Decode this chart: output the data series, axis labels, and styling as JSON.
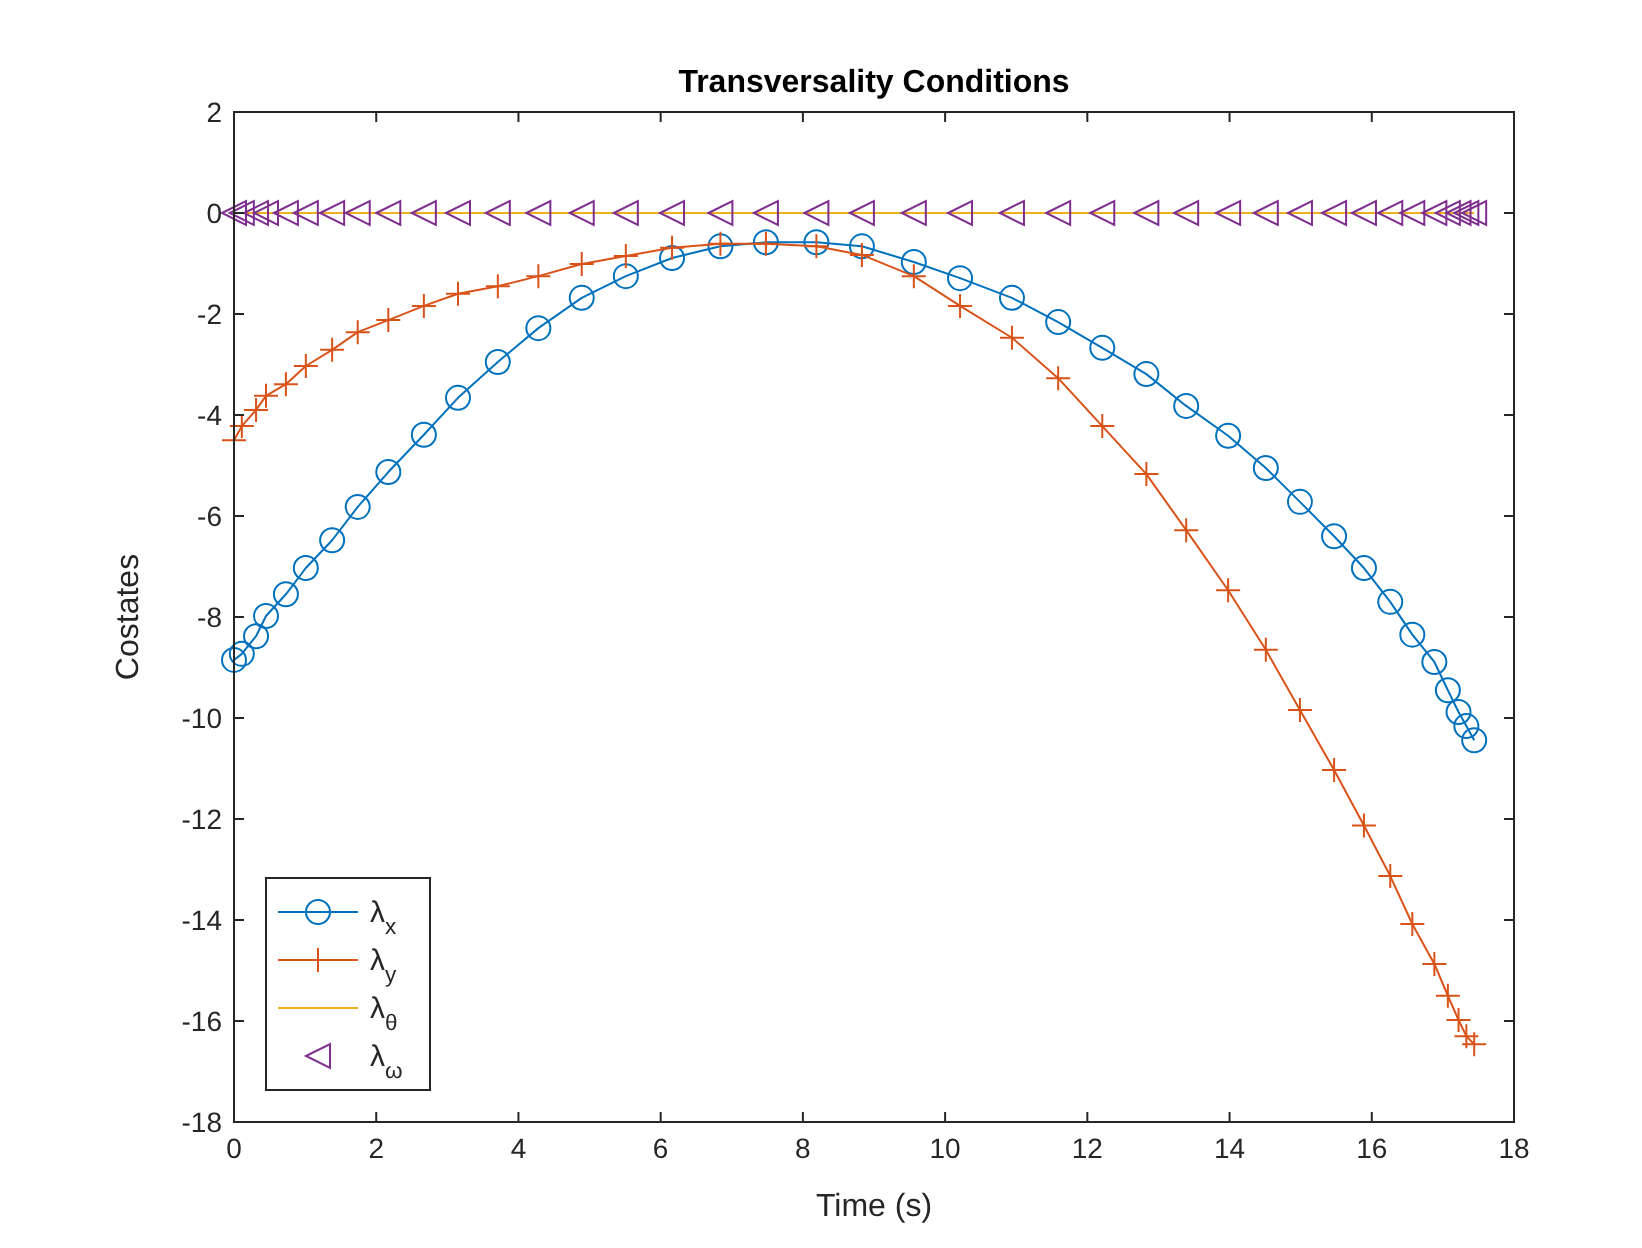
{
  "chart_data": {
    "type": "line",
    "title": "Transversality Conditions",
    "xlabel": "Time (s)",
    "ylabel": "Costates",
    "x": [
      0,
      0.11,
      0.31,
      0.45,
      0.73,
      1.01,
      1.38,
      1.74,
      2.17,
      2.67,
      3.15,
      3.71,
      4.28,
      4.89,
      5.51,
      6.16,
      6.84,
      7.48,
      8.19,
      8.83,
      9.56,
      10.21,
      10.94,
      11.59,
      12.21,
      12.83,
      13.39,
      13.98,
      14.51,
      14.99,
      15.47,
      15.89,
      16.26,
      16.57,
      16.88,
      17.07,
      17.22,
      17.33,
      17.44
    ],
    "series": [
      {
        "name": "λ$_{x}$",
        "color": "#0072bd",
        "marker": "circle",
        "line_style": "solid",
        "values": [
          -8.85,
          -8.73,
          -8.38,
          -7.98,
          -7.55,
          -7.03,
          -6.48,
          -5.82,
          -5.13,
          -4.39,
          -3.66,
          -2.95,
          -2.28,
          -1.68,
          -1.25,
          -0.89,
          -0.66,
          -0.58,
          -0.58,
          -0.66,
          -0.97,
          -1.29,
          -1.68,
          -2.16,
          -2.67,
          -3.19,
          -3.82,
          -4.41,
          -5.05,
          -5.72,
          -6.4,
          -7.03,
          -7.7,
          -8.35,
          -8.89,
          -9.45,
          -9.88,
          -10.16,
          -10.44
        ]
      },
      {
        "name": "λ$_{y}$",
        "color": "#d95319",
        "marker": "cross",
        "line_style": "solid",
        "values": [
          -4.5,
          -4.22,
          -3.9,
          -3.62,
          -3.39,
          -3.03,
          -2.71,
          -2.36,
          -2.12,
          -1.84,
          -1.6,
          -1.45,
          -1.25,
          -1.01,
          -0.85,
          -0.69,
          -0.61,
          -0.61,
          -0.66,
          -0.83,
          -1.25,
          -1.84,
          -2.47,
          -3.27,
          -4.22,
          -5.17,
          -6.28,
          -7.47,
          -8.65,
          -9.84,
          -11.03,
          -12.13,
          -13.13,
          -14.08,
          -14.87,
          -15.5,
          -15.98,
          -16.3,
          -16.46
        ]
      },
      {
        "name": "λ$_{θ}$",
        "color": "#edb120",
        "marker": "none",
        "line_style": "solid",
        "values": [
          0,
          0,
          0,
          0,
          0,
          0,
          0,
          0,
          0,
          0,
          0,
          0,
          0,
          0,
          0,
          0,
          0,
          0,
          0,
          0,
          0,
          0,
          0,
          0,
          0,
          0,
          0,
          0,
          0,
          0,
          0,
          0,
          0,
          0,
          0,
          0,
          0,
          0,
          0
        ]
      },
      {
        "name": "λ$_{ω}$",
        "type": "scatter",
        "color": "#7e2f8e",
        "marker": "triangle",
        "values": [
          0,
          0,
          0,
          0,
          0,
          0,
          0,
          0,
          0,
          0,
          0,
          0,
          0,
          0,
          0,
          0,
          0,
          0,
          0,
          0,
          0,
          0,
          0,
          0,
          0,
          0,
          0,
          0,
          0,
          0,
          0,
          0,
          0,
          0,
          0,
          0,
          0,
          0,
          0
        ]
      }
    ],
    "xlim": [
      0,
      18
    ],
    "xticks": [
      0,
      2,
      4,
      6,
      8,
      10,
      12,
      14,
      16,
      18
    ],
    "ylim": [
      -18,
      2
    ],
    "yticks": [
      -18,
      -16,
      -14,
      -12,
      -10,
      -8,
      -6,
      -4,
      -2,
      0,
      2
    ],
    "grid": false,
    "legend": "bottom left"
  }
}
